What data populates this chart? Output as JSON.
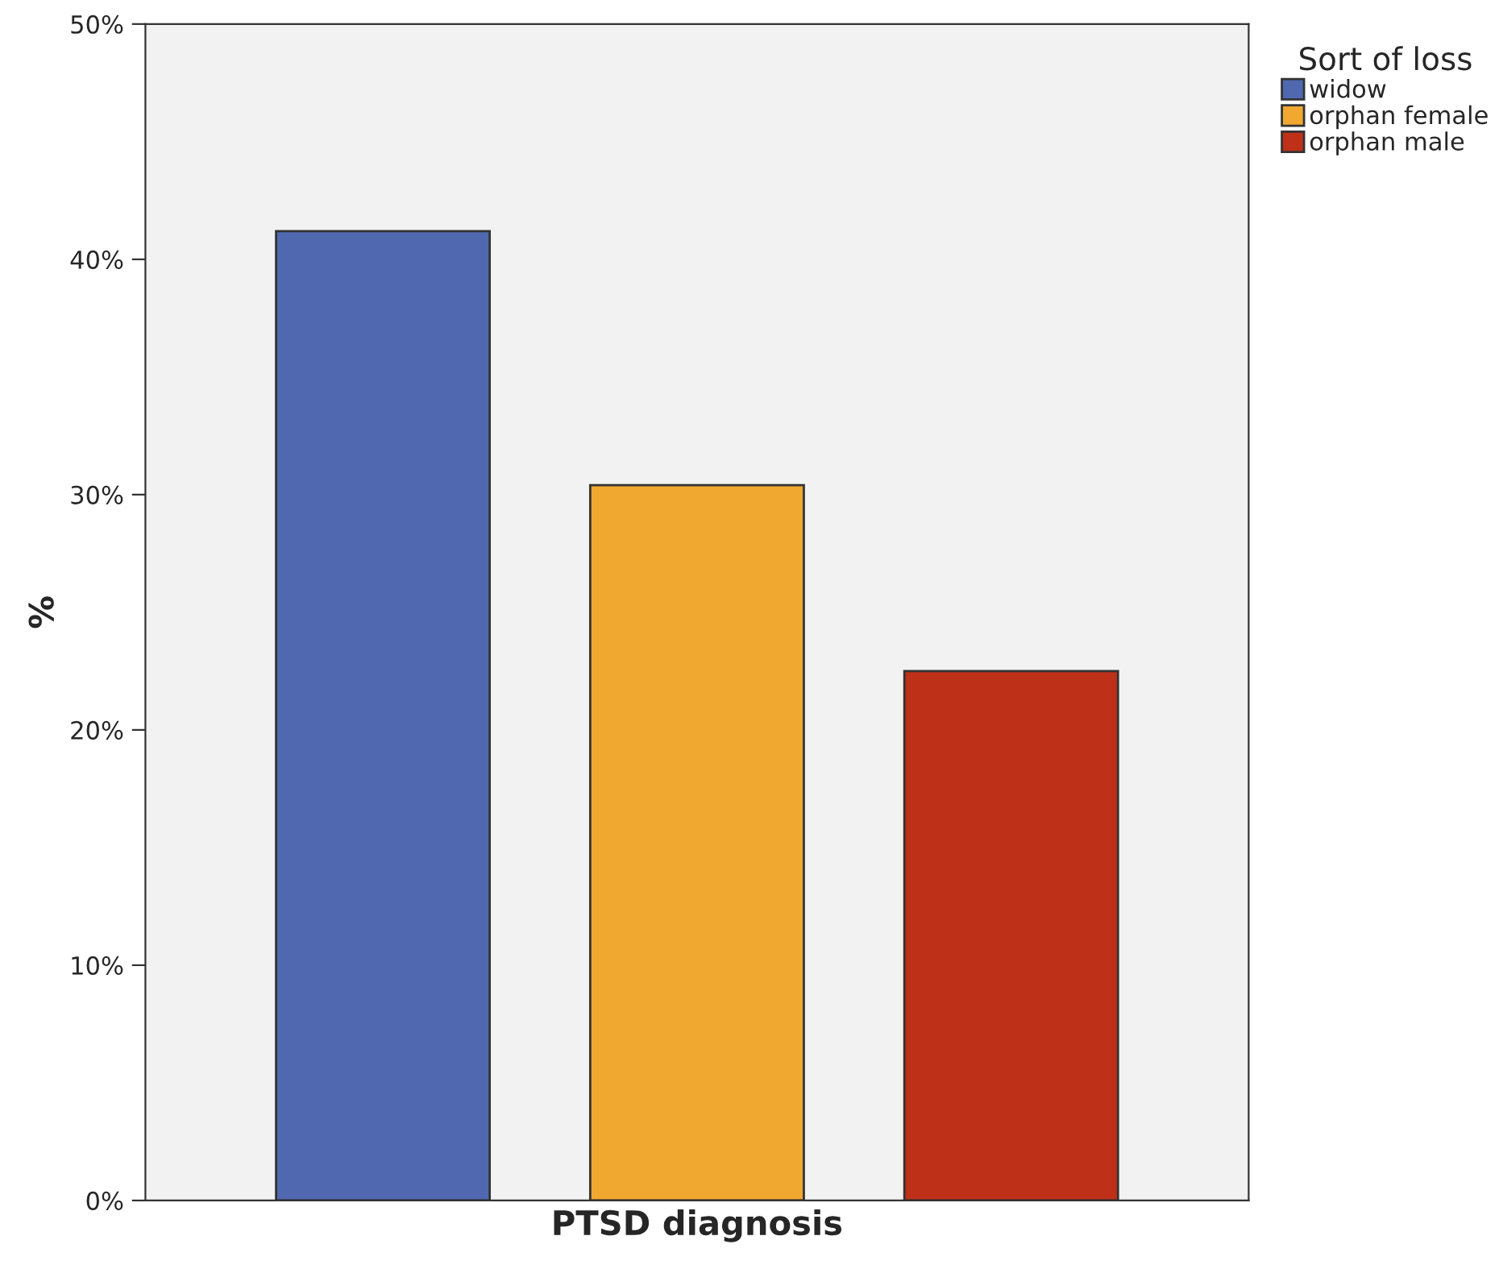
{
  "chart_data": {
    "type": "bar",
    "xlabel": "PTSD diagnosis",
    "ylabel": "%",
    "legend_title": "Sort of loss",
    "categories": [
      null
    ],
    "series": [
      {
        "name": "widow",
        "color": "#5068b0",
        "values": [
          41.2
        ]
      },
      {
        "name": "orphan female",
        "color": "#f0a830",
        "values": [
          30.4
        ]
      },
      {
        "name": "orphan male",
        "color": "#bf3018",
        "values": [
          22.5
        ]
      }
    ],
    "ylim": [
      0,
      50
    ],
    "yticks": [
      {
        "value": 0,
        "label": "0%"
      },
      {
        "value": 10,
        "label": "10%"
      },
      {
        "value": 20,
        "label": "20%"
      },
      {
        "value": 30,
        "label": "30%"
      },
      {
        "value": 40,
        "label": "40%"
      },
      {
        "value": 50,
        "label": "50%"
      }
    ],
    "grid": false,
    "legend": "top right"
  }
}
